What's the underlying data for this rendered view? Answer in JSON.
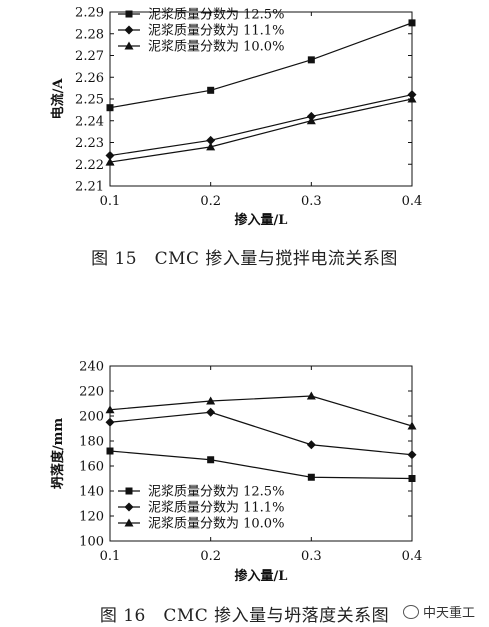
{
  "chart_data": [
    {
      "type": "line",
      "caption": "图 15　CMC 掺入量与搅拌电流关系图",
      "xlabel": "掺入量/L",
      "ylabel": "电流/A",
      "x": [
        0.1,
        0.2,
        0.3,
        0.4
      ],
      "xlim": [
        0.1,
        0.4
      ],
      "ylim": [
        2.21,
        2.29
      ],
      "xticks": [
        "0.1",
        "0.2",
        "0.3",
        "0.4"
      ],
      "yticks": [
        "2.21",
        "2.22",
        "2.23",
        "2.24",
        "2.25",
        "2.26",
        "2.27",
        "2.28",
        "2.29"
      ],
      "legend_position": "top-left",
      "series": [
        {
          "name": "泥浆质量分数为 12.5%",
          "marker": "square",
          "values": [
            2.246,
            2.254,
            2.268,
            2.285
          ]
        },
        {
          "name": "泥浆质量分数为 11.1%",
          "marker": "diamond",
          "values": [
            2.224,
            2.231,
            2.242,
            2.252
          ]
        },
        {
          "name": "泥浆质量分数为 10.0%",
          "marker": "triangle",
          "values": [
            2.221,
            2.228,
            2.24,
            2.25
          ]
        }
      ]
    },
    {
      "type": "line",
      "caption": "图 16　CMC 掺入量与坍落度关系图",
      "xlabel": "掺入量/L",
      "ylabel": "坍落度/mm",
      "x": [
        0.1,
        0.2,
        0.3,
        0.4
      ],
      "xlim": [
        0.1,
        0.4
      ],
      "ylim": [
        100,
        240
      ],
      "xticks": [
        "0.1",
        "0.2",
        "0.3",
        "0.4"
      ],
      "yticks": [
        "100",
        "120",
        "140",
        "160",
        "180",
        "200",
        "220",
        "240"
      ],
      "legend_position": "bottom-left",
      "series": [
        {
          "name": "泥浆质量分数为 12.5%",
          "marker": "square",
          "values": [
            172,
            165,
            151,
            150
          ]
        },
        {
          "name": "泥浆质量分数为 11.1%",
          "marker": "diamond",
          "values": [
            195,
            203,
            177,
            169
          ]
        },
        {
          "name": "泥浆质量分数为 10.0%",
          "marker": "triangle",
          "values": [
            205,
            212,
            216,
            192
          ]
        }
      ]
    }
  ],
  "watermark": {
    "text": "中天重工",
    "icon": "wechat-icon"
  }
}
